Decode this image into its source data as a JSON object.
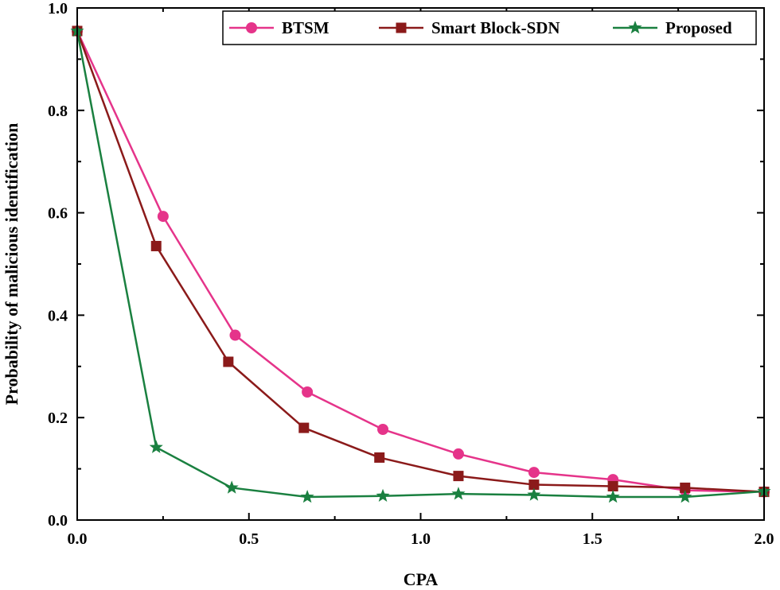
{
  "chart_data": {
    "type": "line",
    "title": "",
    "xlabel": "CPA",
    "ylabel": "Probability of malicious identification",
    "xlim": [
      0.0,
      2.0
    ],
    "ylim": [
      0.0,
      1.0
    ],
    "xticks": [
      0.0,
      0.5,
      1.0,
      1.5,
      2.0
    ],
    "xtick_labels": [
      "0.0",
      "0.5",
      "1.0",
      "1.5",
      "2.0"
    ],
    "yticks": [
      0.0,
      0.2,
      0.4,
      0.6,
      0.8,
      1.0
    ],
    "ytick_labels": [
      "0.0",
      "0.2",
      "0.4",
      "0.6",
      "0.8",
      "1.0"
    ],
    "grid": false,
    "legend_position": "top-right",
    "series": [
      {
        "name": "BTSM",
        "color": "#e5348a",
        "marker": "circle",
        "x": [
          0.0,
          0.25,
          0.46,
          0.67,
          0.89,
          1.11,
          1.33,
          1.56,
          1.77,
          2.0
        ],
        "y": [
          0.955,
          0.593,
          0.361,
          0.25,
          0.177,
          0.129,
          0.093,
          0.079,
          0.058,
          0.055
        ]
      },
      {
        "name": "Smart Block-SDN",
        "color": "#8b1a1a",
        "marker": "square",
        "x": [
          0.0,
          0.23,
          0.44,
          0.66,
          0.88,
          1.11,
          1.33,
          1.56,
          1.77,
          2.0
        ],
        "y": [
          0.955,
          0.535,
          0.309,
          0.18,
          0.122,
          0.086,
          0.069,
          0.066,
          0.063,
          0.055
        ]
      },
      {
        "name": "Proposed",
        "color": "#1a8040",
        "marker": "star",
        "x": [
          0.0,
          0.23,
          0.45,
          0.67,
          0.89,
          1.11,
          1.33,
          1.56,
          1.77,
          2.0
        ],
        "y": [
          0.955,
          0.142,
          0.063,
          0.045,
          0.047,
          0.051,
          0.049,
          0.045,
          0.045,
          0.056
        ]
      }
    ]
  }
}
